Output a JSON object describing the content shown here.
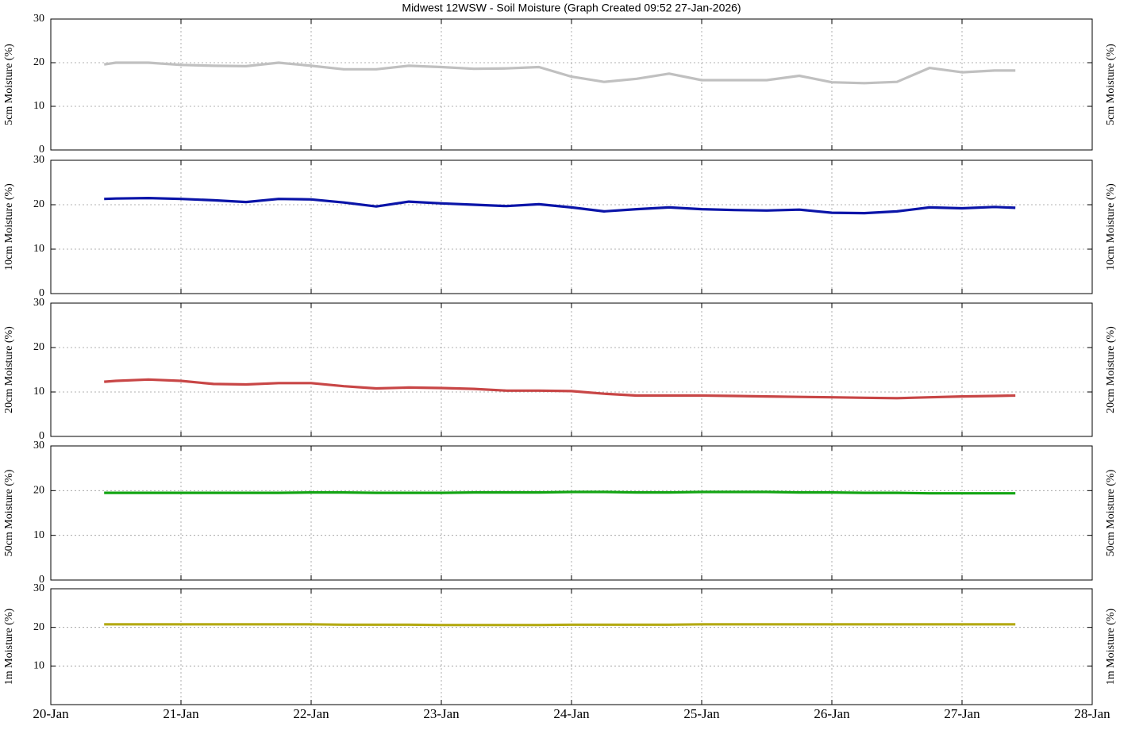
{
  "title": "Midwest 12WSW - Soil Moisture (Graph Created 09:52 27-Jan-2026)",
  "chart_data": [
    {
      "type": "line",
      "ylabel": "5cm Moisture (%)",
      "xlim": [
        20,
        28
      ],
      "xticks": [
        20,
        21,
        22,
        23,
        24,
        25,
        26,
        27,
        28
      ],
      "ylim": [
        0,
        30
      ],
      "yticks": [
        0,
        10,
        20,
        30
      ],
      "grid": true,
      "x": [
        20.41,
        20.5,
        20.75,
        21,
        21.25,
        21.5,
        21.75,
        22,
        22.25,
        22.5,
        22.75,
        23,
        23.25,
        23.5,
        23.75,
        24,
        24.25,
        24.5,
        24.75,
        25,
        25.25,
        25.5,
        25.75,
        26,
        26.25,
        26.5,
        26.75,
        27,
        27.25,
        27.41
      ],
      "series": [
        {
          "color": "#c0c0c0",
          "values": [
            19.6,
            20,
            20,
            19.5,
            19.3,
            19.2,
            20,
            19.3,
            18.5,
            18.5,
            19.3,
            19,
            18.6,
            18.7,
            19,
            16.8,
            15.6,
            16.3,
            17.5,
            16,
            16,
            16,
            17,
            15.5,
            15.3,
            15.6,
            18.8,
            17.8,
            18.2,
            18.2
          ]
        }
      ]
    },
    {
      "type": "line",
      "ylabel": "10cm Moisture (%)",
      "xlim": [
        20,
        28
      ],
      "xticks": [
        20,
        21,
        22,
        23,
        24,
        25,
        26,
        27,
        28
      ],
      "ylim": [
        0,
        30
      ],
      "yticks": [
        0,
        10,
        20,
        30
      ],
      "grid": true,
      "x": [
        20.41,
        20.5,
        20.75,
        21,
        21.25,
        21.5,
        21.75,
        22,
        22.25,
        22.5,
        22.75,
        23,
        23.25,
        23.5,
        23.75,
        24,
        24.25,
        24.5,
        24.75,
        25,
        25.25,
        25.5,
        25.75,
        26,
        26.25,
        26.5,
        26.75,
        27,
        27.25,
        27.41
      ],
      "series": [
        {
          "color": "#0a14a8",
          "values": [
            21.3,
            21.4,
            21.5,
            21.3,
            21,
            20.6,
            21.3,
            21.2,
            20.5,
            19.6,
            20.7,
            20.3,
            20,
            19.7,
            20.1,
            19.4,
            18.5,
            19,
            19.4,
            19,
            18.8,
            18.7,
            18.9,
            18.2,
            18.1,
            18.5,
            19.4,
            19.2,
            19.5,
            19.3
          ]
        }
      ]
    },
    {
      "type": "line",
      "ylabel": "20cm Moisture (%)",
      "xlim": [
        20,
        28
      ],
      "xticks": [
        20,
        21,
        22,
        23,
        24,
        25,
        26,
        27,
        28
      ],
      "ylim": [
        0,
        30
      ],
      "yticks": [
        0,
        10,
        20,
        30
      ],
      "grid": true,
      "x": [
        20.41,
        20.5,
        20.75,
        21,
        21.25,
        21.5,
        21.75,
        22,
        22.25,
        22.5,
        22.75,
        23,
        23.25,
        23.5,
        23.75,
        24,
        24.25,
        24.5,
        24.75,
        25,
        25.25,
        25.5,
        25.75,
        26,
        26.25,
        26.5,
        26.75,
        27,
        27.25,
        27.41
      ],
      "series": [
        {
          "color": "#c84646",
          "values": [
            12.3,
            12.5,
            12.8,
            12.5,
            11.8,
            11.7,
            12,
            12,
            11.3,
            10.8,
            11,
            10.9,
            10.7,
            10.3,
            10.3,
            10.2,
            9.6,
            9.2,
            9.2,
            9.2,
            9.1,
            9,
            8.9,
            8.8,
            8.7,
            8.6,
            8.8,
            9,
            9.1,
            9.2
          ]
        }
      ]
    },
    {
      "type": "line",
      "ylabel": "50cm Moisture (%)",
      "xlim": [
        20,
        28
      ],
      "xticks": [
        20,
        21,
        22,
        23,
        24,
        25,
        26,
        27,
        28
      ],
      "ylim": [
        0,
        30
      ],
      "yticks": [
        0,
        10,
        20,
        30
      ],
      "grid": true,
      "x": [
        20.41,
        20.5,
        20.75,
        21,
        21.25,
        21.5,
        21.75,
        22,
        22.25,
        22.5,
        22.75,
        23,
        23.25,
        23.5,
        23.75,
        24,
        24.25,
        24.5,
        24.75,
        25,
        25.25,
        25.5,
        25.75,
        26,
        26.25,
        26.5,
        26.75,
        27,
        27.25,
        27.41
      ],
      "series": [
        {
          "color": "#14a514",
          "values": [
            19.5,
            19.5,
            19.5,
            19.5,
            19.5,
            19.5,
            19.5,
            19.6,
            19.6,
            19.5,
            19.5,
            19.5,
            19.6,
            19.6,
            19.6,
            19.7,
            19.7,
            19.6,
            19.6,
            19.7,
            19.7,
            19.7,
            19.6,
            19.6,
            19.5,
            19.5,
            19.4,
            19.4,
            19.4,
            19.4
          ]
        }
      ]
    },
    {
      "type": "line",
      "ylabel": "1m Moisture (%)",
      "xlim": [
        20,
        28
      ],
      "xticks": [
        {
          "value": 20,
          "label": "20-Jan"
        },
        {
          "value": 21,
          "label": "21-Jan"
        },
        {
          "value": 22,
          "label": "22-Jan"
        },
        {
          "value": 23,
          "label": "23-Jan"
        },
        {
          "value": 24,
          "label": "24-Jan"
        },
        {
          "value": 25,
          "label": "25-Jan"
        },
        {
          "value": 26,
          "label": "26-Jan"
        },
        {
          "value": 27,
          "label": "27-Jan"
        },
        {
          "value": 28,
          "label": "28-Jan"
        }
      ],
      "ylim": [
        0,
        30
      ],
      "yticks": [
        10,
        20,
        30
      ],
      "grid": true,
      "x": [
        20.41,
        20.5,
        20.75,
        21,
        21.25,
        21.5,
        21.75,
        22,
        22.25,
        22.5,
        22.75,
        23,
        23.25,
        23.5,
        23.75,
        24,
        24.25,
        24.5,
        24.75,
        25,
        25.25,
        25.5,
        25.75,
        26,
        26.25,
        26.5,
        26.75,
        27,
        27.25,
        27.41
      ],
      "series": [
        {
          "color": "#b4aa14",
          "values": [
            20.8,
            20.8,
            20.8,
            20.8,
            20.8,
            20.8,
            20.8,
            20.8,
            20.7,
            20.7,
            20.7,
            20.6,
            20.6,
            20.6,
            20.6,
            20.7,
            20.7,
            20.7,
            20.7,
            20.8,
            20.8,
            20.8,
            20.8,
            20.8,
            20.8,
            20.8,
            20.8,
            20.8,
            20.8,
            20.8
          ]
        }
      ]
    }
  ]
}
